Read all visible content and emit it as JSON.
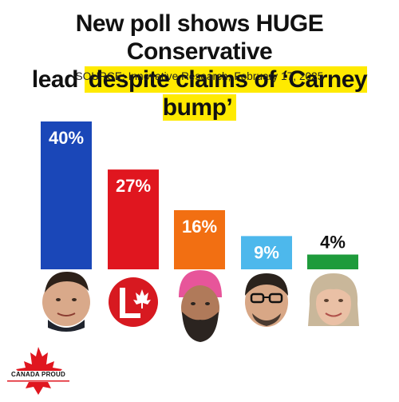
{
  "headline": {
    "line1": "New poll shows HUGE Conservative",
    "line2_plain": "lead ",
    "line2_highlight": "despite claims of ‘Carney bump’"
  },
  "source": "SOURCE: Innovative Research, February 17, 2025",
  "chart_data": {
    "type": "bar",
    "values": [
      40,
      27,
      16,
      9,
      4
    ],
    "labels": [
      "40%",
      "27%",
      "16%",
      "9%",
      "4%"
    ],
    "colors": [
      "#1a47b8",
      "#e0161f",
      "#f26f12",
      "#4db8ec",
      "#1e9b3b"
    ],
    "ylim": [
      0,
      40
    ]
  },
  "candidates": [
    {
      "icon": "candidate-1-portrait-icon"
    },
    {
      "icon": "liberal-party-logo-icon"
    },
    {
      "icon": "candidate-3-portrait-icon"
    },
    {
      "icon": "candidate-4-portrait-icon"
    },
    {
      "icon": "candidate-5-portrait-icon"
    }
  ],
  "logo": {
    "text": "CANADA PROUD",
    "icon": "maple-leaf-icon",
    "color": "#e0161f"
  }
}
